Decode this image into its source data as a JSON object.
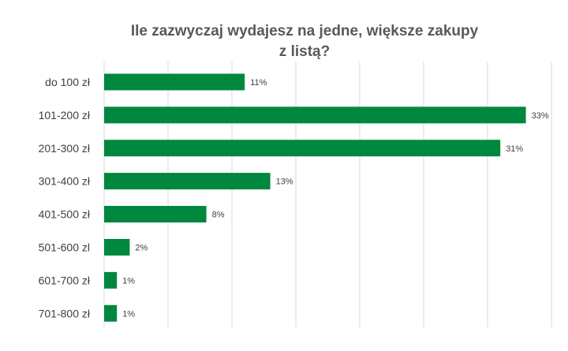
{
  "chart_data": {
    "type": "bar",
    "orientation": "horizontal",
    "title_lines": [
      "Ile zazwyczaj wydajesz na jedne, większe zakupy",
      "z listą?"
    ],
    "categories": [
      "do 100 zł",
      "101-200 zł",
      "201-300 zł",
      "301-400 zł",
      "401-500 zł",
      "501-600 zl",
      "601-700 zł",
      "701-800 zł"
    ],
    "values": [
      11,
      33,
      31,
      13,
      8,
      2,
      1,
      1
    ],
    "value_labels": [
      "11%",
      "33%",
      "31%",
      "13%",
      "8%",
      "2%",
      "1%",
      "1%"
    ],
    "unit": "%",
    "xlim": [
      0,
      35
    ],
    "grid": true,
    "legend": "none",
    "bar_color": "#00873e"
  }
}
